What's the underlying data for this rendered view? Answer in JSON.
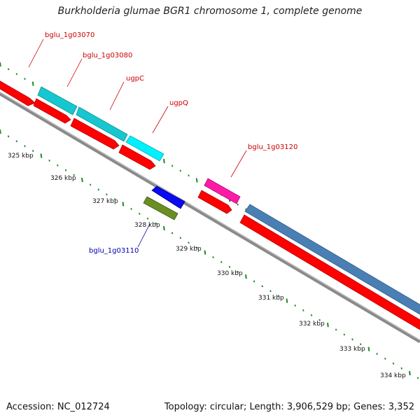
{
  "title": "Burkholderia glumae BGR1 chromosome 1, complete genome",
  "footer": {
    "accession": "Accession: NC_012724",
    "topology": "Topology: circular; Length: 3,906,529 bp; Genes: 3,352"
  },
  "colors": {
    "backbone": "#8a8a8a",
    "tick": "#1f8a1f",
    "label_red": "#cc0000",
    "label_blue": "#0000aa",
    "cds_red": "#ff0000",
    "cds_cyan": "#16c7cf",
    "cds_magenta": "#ff1aa6",
    "cds_blue": "#0a0af5",
    "cds_olive": "#6b8e23",
    "cds_steel": "#4a7fb3"
  },
  "scale": {
    "labels": [
      "325 kbp",
      "326 kbp",
      "327 kbp",
      "328 kbp",
      "329 kbp",
      "330 kbp",
      "331 kbp",
      "332 kbp",
      "333 kbp",
      "334 kbp"
    ]
  },
  "features": [
    {
      "name": "bglu_1g03070",
      "label_color": "red"
    },
    {
      "name": "bglu_1g03080",
      "label_color": "red"
    },
    {
      "name": "ugpC",
      "label_color": "red"
    },
    {
      "name": "ugpQ",
      "label_color": "red"
    },
    {
      "name": "bglu_1g03120",
      "label_color": "red"
    },
    {
      "name": "bglu_1g03110",
      "label_color": "blue"
    }
  ]
}
